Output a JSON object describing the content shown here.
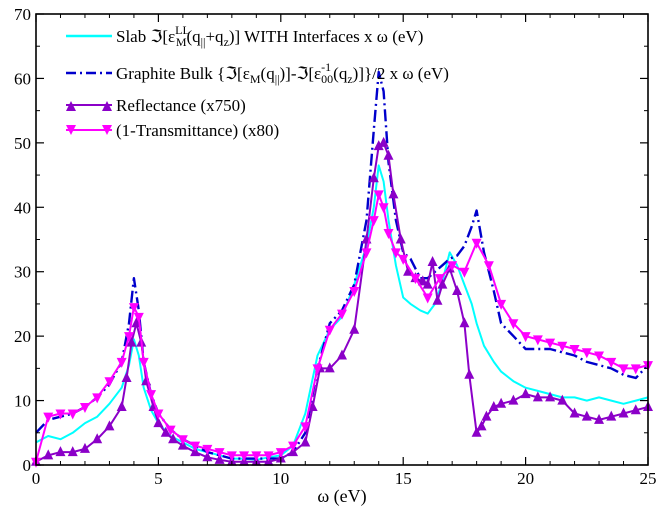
{
  "chart_data": {
    "type": "line",
    "xlabel": "ω (eV)",
    "ylabel": "",
    "xlim": [
      0,
      25
    ],
    "ylim": [
      0,
      70
    ],
    "xticks": [
      "0",
      "5",
      "10",
      "15",
      "20",
      "25"
    ],
    "yticks": [
      "0",
      "10",
      "20",
      "30",
      "40",
      "50",
      "60",
      "70"
    ],
    "grid": false,
    "legend_position": "top-left",
    "legend": [
      {
        "prefix": "Slab ℑ[ε",
        "sup1": "LL",
        "sub1": "M",
        "mid": "(q",
        "sub2": "||",
        "suffix": "+q",
        "sub3": "z",
        "tail": ")] WITH Interfaces x ω (eV)"
      },
      {
        "text": "Graphite Bulk {ℑ[ε",
        "sub1": "M",
        "mid": "(q",
        "sub2": "||",
        "mid2": ")]-ℑ[ε",
        "sup2": "-1",
        "sub3": "00",
        "mid3": "(q",
        "sub4": "z",
        "tail": ")]}/2 x ω (eV)"
      },
      {
        "text": "Reflectance (x750)"
      },
      {
        "text": "(1-Transmittance) (x80)"
      }
    ],
    "series": [
      {
        "name": "Slab ℑ[ε^LL_M(q||+qz)] WITH Interfaces x ω (eV)",
        "color": "#00ffff",
        "style": "solid",
        "marker": "none",
        "x": [
          0,
          0.5,
          1.0,
          1.5,
          2.0,
          2.5,
          3.0,
          3.5,
          3.8,
          4.0,
          4.2,
          4.4,
          4.7,
          5.0,
          5.5,
          6.0,
          6.5,
          7.0,
          7.5,
          8.0,
          8.5,
          9.0,
          9.5,
          10.0,
          10.5,
          11.0,
          11.5,
          12.0,
          12.5,
          13.0,
          13.5,
          13.8,
          14.0,
          14.2,
          14.4,
          14.7,
          15.0,
          15.3,
          15.7,
          16.0,
          16.3,
          16.6,
          16.9,
          17.2,
          17.5,
          17.8,
          18.0,
          18.3,
          18.7,
          19.0,
          19.5,
          20.0,
          20.5,
          21.0,
          21.5,
          22.0,
          22.5,
          23.0,
          23.5,
          24.0,
          24.5,
          25.0
        ],
        "y": [
          3.5,
          4.5,
          4.0,
          5.0,
          6.5,
          7.5,
          9.5,
          12.0,
          15.5,
          19.5,
          17.0,
          12.0,
          8.5,
          6.5,
          4.5,
          3.5,
          2.5,
          2.0,
          1.5,
          1.0,
          1.0,
          0.8,
          1.2,
          1.5,
          3.0,
          8.0,
          17.0,
          21.0,
          23.0,
          28.0,
          34.0,
          40.0,
          46.5,
          44.0,
          38.0,
          31.0,
          26.0,
          25.0,
          24.0,
          23.5,
          25.0,
          28.5,
          33.0,
          31.0,
          28.0,
          25.0,
          22.0,
          18.5,
          16.0,
          14.5,
          13.0,
          12.0,
          11.5,
          11.0,
          10.5,
          10.5,
          10.0,
          10.5,
          10.0,
          9.5,
          10.0,
          10.5
        ]
      },
      {
        "name": "Graphite Bulk {ℑ[εM(q||)]-ℑ[ε^-1_00(qz)]}/2 x ω (eV)",
        "color": "#0000cc",
        "style": "dashdot",
        "marker": "none",
        "x": [
          0,
          0.5,
          1.0,
          1.5,
          2.0,
          2.5,
          3.0,
          3.5,
          3.8,
          4.0,
          4.2,
          4.4,
          4.7,
          5.0,
          5.5,
          6.0,
          6.5,
          7.0,
          7.5,
          8.0,
          8.5,
          9.0,
          9.5,
          10.0,
          10.5,
          11.0,
          11.5,
          12.0,
          12.5,
          13.0,
          13.5,
          13.8,
          14.0,
          14.2,
          14.4,
          14.7,
          15.0,
          15.3,
          15.7,
          16.0,
          16.3,
          16.6,
          16.9,
          17.2,
          17.5,
          17.8,
          18.0,
          18.3,
          18.7,
          19.0,
          19.5,
          20.0,
          20.5,
          21.0,
          21.5,
          22.0,
          22.5,
          23.0,
          23.5,
          24.0,
          24.5,
          25.0
        ],
        "y": [
          5.0,
          7.0,
          7.5,
          8.0,
          9.0,
          10.5,
          12.5,
          16.0,
          22.0,
          29.0,
          24.0,
          16.0,
          11.0,
          8.0,
          5.5,
          4.0,
          3.0,
          2.0,
          1.5,
          1.0,
          1.0,
          1.0,
          1.0,
          1.0,
          2.0,
          5.0,
          15.0,
          22.0,
          24.0,
          28.0,
          38.0,
          52.0,
          61.0,
          58.0,
          47.0,
          38.0,
          33.0,
          32.0,
          29.0,
          29.0,
          30.0,
          31.0,
          32.0,
          32.5,
          34.0,
          37.0,
          39.5,
          33.0,
          27.0,
          22.0,
          20.0,
          18.0,
          18.0,
          18.0,
          17.5,
          17.0,
          16.0,
          15.5,
          15.0,
          14.0,
          13.5,
          15.5
        ]
      },
      {
        "name": "Reflectance (x750)",
        "color": "#8b00c8",
        "style": "solid",
        "marker": "triangle-up",
        "x": [
          0,
          0.5,
          1.0,
          1.5,
          2.0,
          2.5,
          3.0,
          3.5,
          3.7,
          3.9,
          4.1,
          4.3,
          4.5,
          4.8,
          5.0,
          5.3,
          5.6,
          6.0,
          6.5,
          7.0,
          7.5,
          8.0,
          8.5,
          9.0,
          9.5,
          10.0,
          10.5,
          11.0,
          11.3,
          11.6,
          12.0,
          12.5,
          13.0,
          13.5,
          13.8,
          14.0,
          14.2,
          14.4,
          14.6,
          14.9,
          15.2,
          15.5,
          15.8,
          16.0,
          16.2,
          16.4,
          16.6,
          16.9,
          17.2,
          17.5,
          17.7,
          18.0,
          18.2,
          18.4,
          18.7,
          19.0,
          19.5,
          20.0,
          20.5,
          21.0,
          21.5,
          22.0,
          22.5,
          23.0,
          23.5,
          24.0,
          24.5,
          25.0
        ],
        "y": [
          0.5,
          1.5,
          2.0,
          2.0,
          2.5,
          4.0,
          6.0,
          9.0,
          13.5,
          19.0,
          22.0,
          19.0,
          13.0,
          9.0,
          6.5,
          5.0,
          4.0,
          3.0,
          2.0,
          1.2,
          0.8,
          0.5,
          0.5,
          0.5,
          0.5,
          1.0,
          2.0,
          3.5,
          9.0,
          15.0,
          15.0,
          17.0,
          21.0,
          35.0,
          44.5,
          49.5,
          50.0,
          48.0,
          42.0,
          35.0,
          30.0,
          29.0,
          28.5,
          28.0,
          31.5,
          25.5,
          28.0,
          30.5,
          27.0,
          22.0,
          14.0,
          5.0,
          6.0,
          7.5,
          9.0,
          9.5,
          10.0,
          11.0,
          10.5,
          10.5,
          10.0,
          8.0,
          7.5,
          7.0,
          7.5,
          8.0,
          8.5,
          9.0
        ]
      },
      {
        "name": "(1-Transmittance) (x80)",
        "color": "#ff00ff",
        "style": "solid",
        "marker": "triangle-down",
        "x": [
          0,
          0.5,
          1.0,
          1.5,
          2.0,
          2.5,
          3.0,
          3.5,
          3.8,
          4.0,
          4.2,
          4.4,
          4.7,
          5.0,
          5.5,
          6.0,
          6.5,
          7.0,
          7.5,
          8.0,
          8.5,
          9.0,
          9.5,
          10.0,
          10.5,
          11.0,
          11.5,
          12.0,
          12.5,
          13.0,
          13.5,
          13.8,
          14.0,
          14.2,
          14.4,
          14.7,
          15.0,
          15.5,
          16.0,
          16.5,
          17.0,
          17.5,
          18.0,
          18.5,
          19.0,
          19.5,
          20.0,
          20.5,
          21.0,
          21.5,
          22.0,
          22.5,
          23.0,
          23.5,
          24.0,
          24.5,
          25.0
        ],
        "y": [
          0.5,
          7.5,
          8.0,
          8.0,
          9.0,
          10.5,
          13.0,
          16.0,
          20.0,
          24.5,
          23.0,
          16.0,
          11.0,
          8.0,
          5.5,
          4.0,
          3.0,
          2.5,
          2.0,
          1.5,
          1.5,
          1.5,
          1.5,
          2.0,
          3.0,
          6.0,
          15.0,
          21.0,
          23.5,
          27.0,
          33.0,
          38.0,
          42.0,
          40.0,
          36.0,
          33.0,
          32.0,
          29.0,
          26.0,
          29.0,
          31.0,
          30.0,
          34.5,
          31.0,
          25.0,
          22.0,
          20.0,
          19.5,
          19.0,
          18.5,
          18.0,
          17.5,
          17.0,
          16.0,
          15.0,
          15.0,
          15.5
        ]
      }
    ]
  }
}
